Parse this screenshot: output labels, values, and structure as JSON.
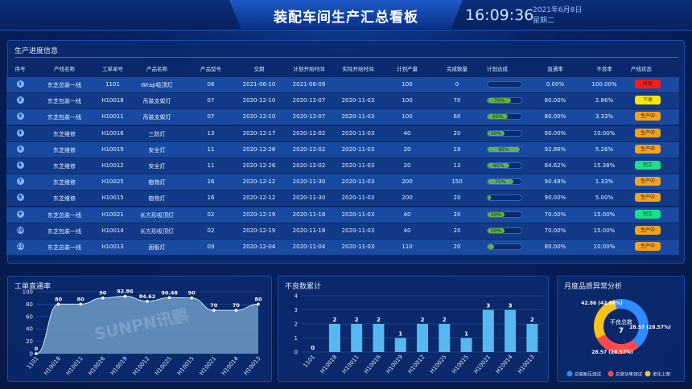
{
  "header": {
    "title": "装配车间生产汇总看板",
    "time": "16:09:36",
    "date": "2021年6月8日",
    "weekday": "星期二"
  },
  "progress": {
    "title": "生产进度信息",
    "columns": [
      "序号",
      "产线名称",
      "工单单号",
      "产品名称",
      "产品型号",
      "交期",
      "计划开始时间",
      "实际开始时间",
      "计划产量",
      "完成数量",
      "计划达成",
      "直通率",
      "不良率",
      "产线状态"
    ],
    "rows": [
      {
        "no": "1",
        "line": "东芝总装一线",
        "order": "1101",
        "product": "Wrap吸顶灯",
        "model": "06",
        "due": "2021-06-10",
        "plan_start": "2021-06-09",
        "actual_start": "",
        "plan_qty": "100",
        "done_qty": "0",
        "achieve": 0,
        "achieve_label": "",
        "pass_rate": "0.00%",
        "defect_rate": "100.00%",
        "status": "异常",
        "status_color": "#ff1a1a"
      },
      {
        "no": "2",
        "line": "东芝包装一线",
        "order": "H10018",
        "product": "吊装支架灯",
        "model": "07",
        "due": "2020-12-10",
        "plan_start": "2020-12-07",
        "actual_start": "2020-11-03",
        "plan_qty": "100",
        "done_qty": "70",
        "achieve": 70,
        "achieve_label": "70%",
        "pass_rate": "80.00%",
        "defect_rate": "2.86%",
        "status": "下发",
        "status_color": "#ffe600"
      },
      {
        "no": "3",
        "line": "东芝包装一线",
        "order": "H10011",
        "product": "吊装支架灯",
        "model": "07",
        "due": "2020-12-10",
        "plan_start": "2020-12-07",
        "actual_start": "2020-11-03",
        "plan_qty": "100",
        "done_qty": "60",
        "achieve": 60,
        "achieve_label": "60%",
        "pass_rate": "80.00%",
        "defect_rate": "3.33%",
        "status": "生产中",
        "status_color": "#f7a21b"
      },
      {
        "no": "4",
        "line": "东芝维修",
        "order": "H10016",
        "product": "三防灯",
        "model": "13",
        "due": "2020-12-17",
        "plan_start": "2020-12-02",
        "actual_start": "2020-11-03",
        "plan_qty": "40",
        "done_qty": "20",
        "achieve": 50,
        "achieve_label": "50%",
        "pass_rate": "90.00%",
        "defect_rate": "10.00%",
        "status": "生产中",
        "status_color": "#f7a21b"
      },
      {
        "no": "5",
        "line": "东芝维修",
        "order": "H10019",
        "product": "安全灯",
        "model": "11",
        "due": "2020-12-26",
        "plan_start": "2020-12-02",
        "actual_start": "2020-11-03",
        "plan_qty": "20",
        "done_qty": "19",
        "achieve": 95,
        "achieve_label": "95%",
        "pass_rate": "92.86%",
        "defect_rate": "5.26%",
        "status": "生产中",
        "status_color": "#f7a21b"
      },
      {
        "no": "6",
        "line": "东芝维修",
        "order": "H10012",
        "product": "安全灯",
        "model": "11",
        "due": "2020-12-26",
        "plan_start": "2020-12-02",
        "actual_start": "2020-11-03",
        "plan_qty": "20",
        "done_qty": "13",
        "achieve": 65,
        "achieve_label": "65%",
        "pass_rate": "84.62%",
        "defect_rate": "15.38%",
        "status": "完工",
        "status_color": "#19e08a"
      },
      {
        "no": "7",
        "line": "东芝维修",
        "order": "H10025",
        "product": "植物灯",
        "model": "16",
        "due": "2020-12-12",
        "plan_start": "2020-11-30",
        "actual_start": "2020-11-03",
        "plan_qty": "200",
        "done_qty": "150",
        "achieve": 75,
        "achieve_label": "75%",
        "pass_rate": "90.48%",
        "defect_rate": "1.33%",
        "status": "生产中",
        "status_color": "#f7a21b"
      },
      {
        "no": "8",
        "line": "东芝维修",
        "order": "H10015",
        "product": "植物灯",
        "model": "16",
        "due": "2020-12-12",
        "plan_start": "2020-11-30",
        "actual_start": "2020-11-03",
        "plan_qty": "200",
        "done_qty": "20",
        "achieve": 10,
        "achieve_label": "",
        "pass_rate": "90.00%",
        "defect_rate": "5.00%",
        "status": "生产中",
        "status_color": "#f7a21b"
      },
      {
        "no": "9",
        "line": "东芝总装一线",
        "order": "H10021",
        "product": "长方形吸顶灯",
        "model": "02",
        "due": "2020-12-19",
        "plan_start": "2020-11-18",
        "actual_start": "2020-11-03",
        "plan_qty": "40",
        "done_qty": "20",
        "achieve": 50,
        "achieve_label": "50%",
        "pass_rate": "70.00%",
        "defect_rate": "15.00%",
        "status": "完工",
        "status_color": "#19e08a"
      },
      {
        "no": "10",
        "line": "东芝包装一线",
        "order": "H10014",
        "product": "长方形吸顶灯",
        "model": "02",
        "due": "2020-12-19",
        "plan_start": "2020-11-18",
        "actual_start": "2020-11-03",
        "plan_qty": "40",
        "done_qty": "20",
        "achieve": 50,
        "achieve_label": "50%",
        "pass_rate": "70.00%",
        "defect_rate": "15.00%",
        "status": "生产中",
        "status_color": "#f7a21b"
      },
      {
        "no": "11",
        "line": "东芝总装一线",
        "order": "H10013",
        "product": "面板灯",
        "model": "09",
        "due": "2020-12-04",
        "plan_start": "2020-11-04",
        "actual_start": "2020-11-03",
        "plan_qty": "110",
        "done_qty": "20",
        "achieve": 18,
        "achieve_label": "",
        "pass_rate": "80.00%",
        "defect_rate": "10.00%",
        "status": "生产中",
        "status_color": "#f7a21b"
      }
    ]
  },
  "pass_chart": {
    "title": "工单直通率",
    "watermark": "SUNPN讯鹏"
  },
  "defect_chart": {
    "title": "不良数累计"
  },
  "donut": {
    "title": "月度品质异常分析",
    "center_label": "不良总数",
    "center_value": "7",
    "labels": [
      "42.86 (42.86%)",
      "28.57 (28.57%)",
      "28.57 (28.57%)"
    ],
    "legend": [
      "总装耐压测试",
      "总装功率测试",
      "老化上架"
    ],
    "colors": [
      "#2e8cff",
      "#ff4b4b",
      "#f7c21b"
    ]
  },
  "chart_data": [
    {
      "type": "area",
      "title": "工单直通率",
      "categories": [
        "1101",
        "H10018",
        "H10011",
        "H10016",
        "H10019",
        "H10012",
        "H10025",
        "H10015",
        "H10021",
        "H10014",
        "H10013"
      ],
      "values": [
        0,
        80,
        80,
        90,
        92.86,
        84.62,
        90.48,
        90,
        70,
        70,
        80
      ],
      "value_labels": [
        "0",
        "80",
        "80",
        "90",
        "92.86",
        "84.62",
        "90.48",
        "90",
        "70",
        "70",
        "80"
      ],
      "ylim": [
        0,
        100
      ],
      "yticks": [
        0,
        20,
        40,
        60,
        80,
        100
      ]
    },
    {
      "type": "bar",
      "title": "不良数累计",
      "categories": [
        "1101",
        "H10018",
        "H10011",
        "H10016",
        "H10019",
        "H10012",
        "H10025",
        "H10015",
        "H10021",
        "H10014",
        "H10013"
      ],
      "values": [
        0,
        2,
        2,
        2,
        1,
        2,
        2,
        1,
        3,
        3,
        2
      ],
      "ylim": [
        0,
        4
      ],
      "yticks": [
        0,
        1,
        2,
        3,
        4
      ]
    },
    {
      "type": "pie",
      "title": "月度品质异常分析",
      "categories": [
        "总装耐压测试",
        "总装功率测试",
        "老化上架"
      ],
      "values": [
        42.86,
        28.57,
        28.57
      ]
    }
  ]
}
